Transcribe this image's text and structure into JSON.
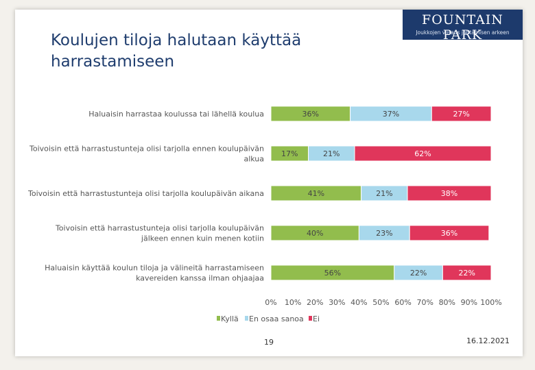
{
  "logo": {
    "name": "Fountain Park",
    "tagline": "Joukkojen viisaus johtamisen arkeen"
  },
  "title": "Koulujen tiloja halutaan käyttää harrastamiseen",
  "chart_data": {
    "type": "bar",
    "orientation": "horizontal",
    "stacked": true,
    "categories": [
      [
        "Haluaisin harrastaa koulussa tai lähellä koulua"
      ],
      [
        "Toivoisin että harrastustunteja olisi tarjolla ennen koulupäivän",
        "alkua"
      ],
      [
        "Toivoisin että harrastustunteja olisi tarjolla koulupäivän aikana"
      ],
      [
        "Toivoisin että harrastustunteja olisi tarjolla koulupäivän",
        "jälkeen ennen kuin menen kotiin"
      ],
      [
        "Haluaisin käyttää koulun tiloja ja välineitä harrastamiseen",
        "kavereiden kanssa ilman ohjaajaa"
      ]
    ],
    "series": [
      {
        "name": "Kyllä",
        "color": "#92bd4d",
        "values": [
          36,
          17,
          41,
          40,
          56
        ]
      },
      {
        "name": "En osaa sanoa",
        "color": "#a8d8ec",
        "values": [
          37,
          21,
          21,
          23,
          22
        ]
      },
      {
        "name": "Ei",
        "color": "#e0365b",
        "values": [
          27,
          62,
          38,
          36,
          22
        ]
      }
    ],
    "xlim": [
      0,
      100
    ],
    "xticks": [
      "0%",
      "10%",
      "20%",
      "30%",
      "40%",
      "50%",
      "60%",
      "70%",
      "80%",
      "90%",
      "100%"
    ],
    "value_suffix": "%",
    "legend_position": "bottom"
  },
  "footer": {
    "page_number": "19",
    "date": "16.12.2021"
  }
}
